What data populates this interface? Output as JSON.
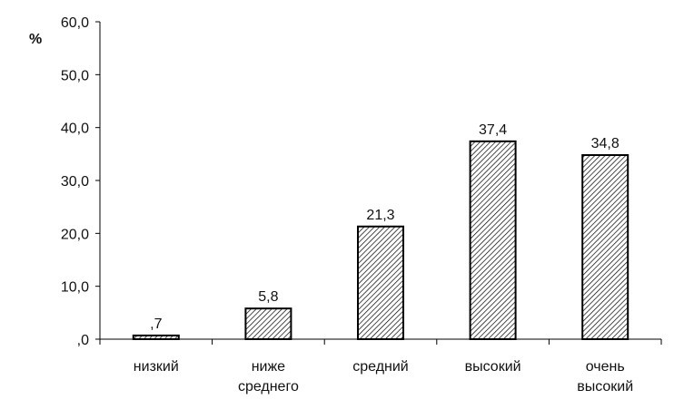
{
  "chart_data": {
    "type": "bar",
    "y_unit": "%",
    "categories": [
      [
        "низкий"
      ],
      [
        "ниже",
        "среднего"
      ],
      [
        "средний"
      ],
      [
        "высокий"
      ],
      [
        "очень",
        "высокий"
      ]
    ],
    "values": [
      0.7,
      5.8,
      21.3,
      37.4,
      34.8
    ],
    "data_labels": [
      ",7",
      "5,8",
      "21,3",
      "37,4",
      "34,8"
    ],
    "ylim": [
      0,
      60
    ],
    "y_ticks": [
      0,
      10,
      20,
      30,
      40,
      50,
      60
    ],
    "y_tick_labels": [
      ",0",
      "10,0",
      "20,0",
      "30,0",
      "40,0",
      "50,0",
      "60,0"
    ],
    "grid": false,
    "bar_fill": "hatched",
    "colors": {
      "bar_stroke": "#000000",
      "hatch": "#000000",
      "axis": "#000000",
      "background": "#ffffff"
    }
  }
}
